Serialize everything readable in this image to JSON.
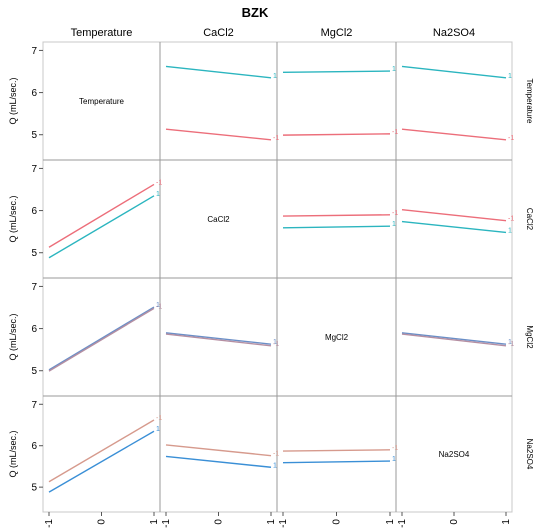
{
  "chart_data": {
    "type": "line",
    "title": "BZK",
    "factors": [
      "Temperature",
      "CaCl2",
      "MgCl2",
      "Na2SO4"
    ],
    "ylabel": "Q (mL/sec.)",
    "ylim": [
      4.4,
      7.2
    ],
    "yticks": [
      "5",
      "6",
      "7"
    ],
    "xlim": [
      -1,
      1
    ],
    "xticks": [
      "-1",
      "0",
      "1"
    ],
    "colors": {
      "plus": "#2bb5bf",
      "minus": "#ec6e7a",
      "grid": "#9a9a9a",
      "frame": "#c8c8c8"
    },
    "panels": [
      {
        "row": 0,
        "col": 1,
        "x_factor": "CaCl2",
        "trace_factor": "Temperature",
        "series": [
          {
            "level": "1",
            "y": [
              6.62,
              6.35
            ],
            "color": "#2bb5bf"
          },
          {
            "level": "-1",
            "y": [
              5.13,
              4.88
            ],
            "color": "#ec6e7a"
          }
        ]
      },
      {
        "row": 0,
        "col": 2,
        "x_factor": "MgCl2",
        "trace_factor": "Temperature",
        "series": [
          {
            "level": "1",
            "y": [
              6.48,
              6.51
            ],
            "color": "#2bb5bf"
          },
          {
            "level": "-1",
            "y": [
              4.99,
              5.02
            ],
            "color": "#ec6e7a"
          }
        ]
      },
      {
        "row": 0,
        "col": 3,
        "x_factor": "Na2SO4",
        "trace_factor": "Temperature",
        "series": [
          {
            "level": "1",
            "y": [
              6.62,
              6.35
            ],
            "color": "#2bb5bf"
          },
          {
            "level": "-1",
            "y": [
              5.13,
              4.88
            ],
            "color": "#ec6e7a"
          }
        ]
      },
      {
        "row": 1,
        "col": 0,
        "x_factor": "Temperature",
        "trace_factor": "CaCl2",
        "series": [
          {
            "level": "-1",
            "y": [
              5.13,
              6.62
            ],
            "color": "#ec6e7a"
          },
          {
            "level": "1",
            "y": [
              4.88,
              6.35
            ],
            "color": "#2bb5bf"
          }
        ]
      },
      {
        "row": 1,
        "col": 2,
        "x_factor": "MgCl2",
        "trace_factor": "CaCl2",
        "series": [
          {
            "level": "-1",
            "y": [
              5.87,
              5.9
            ],
            "color": "#ec6e7a"
          },
          {
            "level": "1",
            "y": [
              5.59,
              5.63
            ],
            "color": "#2bb5bf"
          }
        ]
      },
      {
        "row": 1,
        "col": 3,
        "x_factor": "Na2SO4",
        "trace_factor": "CaCl2",
        "series": [
          {
            "level": "-1",
            "y": [
              6.02,
              5.76
            ],
            "color": "#ec6e7a"
          },
          {
            "level": "1",
            "y": [
              5.74,
              5.48
            ],
            "color": "#2bb5bf"
          }
        ]
      },
      {
        "row": 2,
        "col": 0,
        "x_factor": "Temperature",
        "trace_factor": "MgCl2",
        "series": [
          {
            "level": "1",
            "y": [
              5.02,
              6.51
            ],
            "color": "#6b8fc7"
          },
          {
            "level": "-1",
            "y": [
              4.99,
              6.48
            ],
            "color": "#b58fa2"
          }
        ]
      },
      {
        "row": 2,
        "col": 1,
        "x_factor": "CaCl2",
        "trace_factor": "MgCl2",
        "series": [
          {
            "level": "1",
            "y": [
              5.9,
              5.63
            ],
            "color": "#6b8fc7"
          },
          {
            "level": "-1",
            "y": [
              5.87,
              5.59
            ],
            "color": "#b58fa2"
          }
        ]
      },
      {
        "row": 2,
        "col": 3,
        "x_factor": "Na2SO4",
        "trace_factor": "MgCl2",
        "series": [
          {
            "level": "1",
            "y": [
              5.9,
              5.63
            ],
            "color": "#6b8fc7"
          },
          {
            "level": "-1",
            "y": [
              5.87,
              5.59
            ],
            "color": "#b58fa2"
          }
        ]
      },
      {
        "row": 3,
        "col": 0,
        "x_factor": "Temperature",
        "trace_factor": "Na2SO4",
        "series": [
          {
            "level": "-1",
            "y": [
              5.13,
              6.62
            ],
            "color": "#d69a8d"
          },
          {
            "level": "1",
            "y": [
              4.88,
              6.35
            ],
            "color": "#3a8fd6"
          }
        ]
      },
      {
        "row": 3,
        "col": 1,
        "x_factor": "CaCl2",
        "trace_factor": "Na2SO4",
        "series": [
          {
            "level": "-1",
            "y": [
              6.02,
              5.76
            ],
            "color": "#d69a8d"
          },
          {
            "level": "1",
            "y": [
              5.74,
              5.48
            ],
            "color": "#3a8fd6"
          }
        ]
      },
      {
        "row": 3,
        "col": 2,
        "x_factor": "MgCl2",
        "trace_factor": "Na2SO4",
        "series": [
          {
            "level": "-1",
            "y": [
              5.87,
              5.9
            ],
            "color": "#d69a8d"
          },
          {
            "level": "1",
            "y": [
              5.59,
              5.63
            ],
            "color": "#3a8fd6"
          }
        ]
      }
    ]
  }
}
